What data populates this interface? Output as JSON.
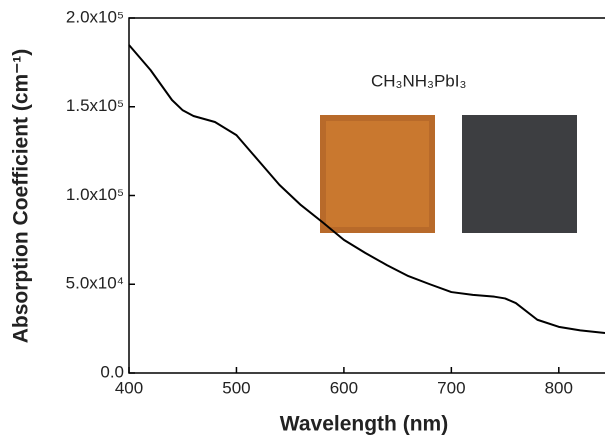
{
  "chart_data": {
    "type": "line",
    "x_label": "Wavelength (nm)",
    "y_label": "Absorption Coefficient (cm⁻¹)",
    "annotation": "CH₃NH₃PbI₃",
    "x": [
      400,
      420,
      440,
      450,
      460,
      480,
      500,
      520,
      540,
      560,
      580,
      600,
      620,
      640,
      660,
      680,
      700,
      720,
      740,
      750,
      760,
      780,
      800,
      820,
      843
    ],
    "series": [
      {
        "color": "#000000",
        "values": [
          184800,
          170700,
          153800,
          148000,
          144800,
          141400,
          134000,
          120000,
          106000,
          94600,
          85000,
          75000,
          67600,
          60800,
          54600,
          50000,
          45600,
          44000,
          43000,
          42000,
          39400,
          30000,
          26000,
          24000,
          22500
        ]
      }
    ],
    "xlim": [
      400,
      843
    ],
    "ylim": [
      0,
      200000
    ],
    "xticks": [
      400,
      500,
      600,
      700,
      800
    ],
    "yticks": [
      {
        "value": 0,
        "label": "0.0"
      },
      {
        "value": 50000,
        "label": "5.0x10⁴"
      },
      {
        "value": 100000,
        "label": "1.0x10⁵"
      },
      {
        "value": 150000,
        "label": "1.5x10⁵"
      },
      {
        "value": 200000,
        "label": "2.0x10⁵"
      }
    ]
  }
}
